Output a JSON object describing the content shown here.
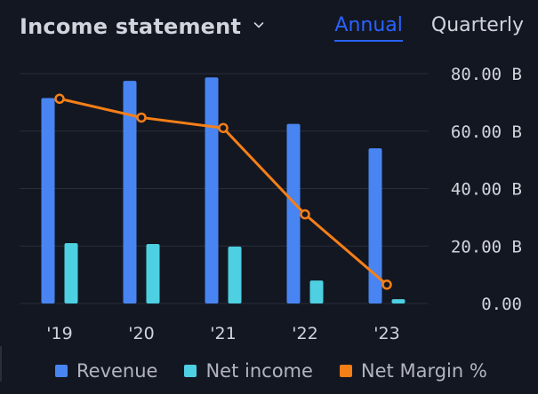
{
  "header": {
    "title": "Income statement",
    "tabs": [
      {
        "label": "Annual",
        "active": true
      },
      {
        "label": "Quarterly",
        "active": false
      }
    ]
  },
  "colors": {
    "background": "#131722",
    "revenue": "#4885f2",
    "net_income": "#4dd0e1",
    "net_margin": "#f57f17",
    "grid": "#2a2e39",
    "active_tab": "#2962ff"
  },
  "chart_data": {
    "type": "bar",
    "categories": [
      "'19",
      "'20",
      "'21",
      "'22",
      "'23"
    ],
    "series": [
      {
        "name": "Revenue",
        "type": "bar",
        "axis": "right",
        "values": [
          71.5,
          77.5,
          78.7,
          62.5,
          54.0
        ]
      },
      {
        "name": "Net income",
        "type": "bar",
        "axis": "right",
        "values": [
          21.0,
          20.7,
          19.8,
          8.0,
          1.5
        ]
      },
      {
        "name": "Net Margin %",
        "type": "line",
        "axis": "secondary",
        "values": [
          29.4,
          26.7,
          25.2,
          12.8,
          2.7
        ]
      }
    ],
    "y_ticks": [
      "80.00 B",
      "60.00 B",
      "40.00 B",
      "20.00 B",
      "0.00"
    ],
    "ylim": [
      0,
      80
    ],
    "secondary_ylim": [
      0,
      33
    ],
    "grid": true,
    "legend": "bottom"
  }
}
